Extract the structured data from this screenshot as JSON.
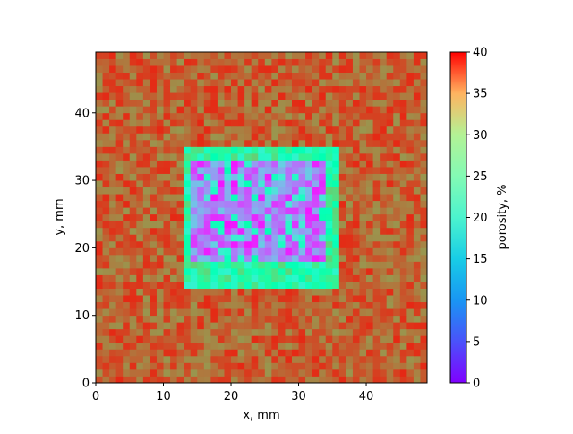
{
  "chart_data": {
    "type": "heatmap",
    "title": "",
    "xlabel": "x, mm",
    "ylabel": "y, mm",
    "xlim": [
      0,
      49
    ],
    "ylim": [
      0,
      49
    ],
    "xticks": [
      "0",
      "10",
      "20",
      "30",
      "40"
    ],
    "yticks": [
      "0",
      "10",
      "20",
      "30",
      "40"
    ],
    "grid": false,
    "grid_cells": [
      49,
      49
    ],
    "colormap": "rainbow",
    "colorbar": {
      "label": "porosity, %",
      "range": [
        0,
        40
      ],
      "ticks": [
        "0",
        "5",
        "10",
        "15",
        "20",
        "25",
        "30",
        "35",
        "40"
      ]
    },
    "regions": [
      {
        "name": "background",
        "x_range": [
          0,
          49
        ],
        "y_range": [
          0,
          49
        ],
        "porosity_mean": 35,
        "porosity_spread": 3
      },
      {
        "name": "transition-ring",
        "x_range": [
          13,
          36
        ],
        "y_range": [
          14,
          35
        ],
        "porosity_mean": 22,
        "porosity_spread": 6
      },
      {
        "name": "low-porosity-core",
        "x_range": [
          14,
          34
        ],
        "y_range": [
          18,
          33
        ],
        "porosity_mean": 6,
        "porosity_spread": 5
      }
    ],
    "pattern_note": "random pixel-scale variation over each region"
  }
}
